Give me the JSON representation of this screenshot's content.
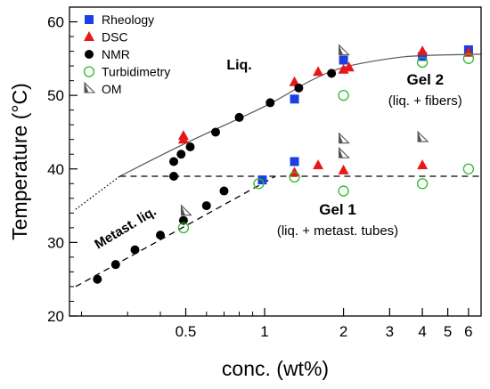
{
  "chart_data": {
    "type": "scatter",
    "xlabel": "conc. (wt%)",
    "ylabel": "Temperature (°C)",
    "xscale": "log",
    "xlim": [
      0.18,
      6.7
    ],
    "ylim": [
      20,
      62
    ],
    "xticks": [
      {
        "value": 0.5,
        "label": "0.5"
      },
      {
        "value": 1,
        "label": "1"
      },
      {
        "value": 2,
        "label": "2"
      },
      {
        "value": 3,
        "label": "3"
      },
      {
        "value": 4,
        "label": "4"
      },
      {
        "value": 5,
        "label": "5"
      },
      {
        "value": 6,
        "label": "6"
      }
    ],
    "yticks": [
      20,
      30,
      40,
      50,
      60
    ],
    "legend_position": "top-left",
    "series": [
      {
        "name": "Rheology",
        "marker": "square",
        "color": "#1b3fe0",
        "points": [
          [
            0.98,
            38.5
          ],
          [
            1.3,
            41.0
          ],
          [
            1.3,
            49.5
          ],
          [
            2.0,
            54.8
          ],
          [
            4.0,
            55.3
          ],
          [
            6.0,
            56.2
          ]
        ]
      },
      {
        "name": "DSC",
        "marker": "triangle",
        "color": "#e81818",
        "points": [
          [
            0.49,
            44.5
          ],
          [
            0.49,
            44.0
          ],
          [
            1.3,
            39.5
          ],
          [
            1.3,
            51.8
          ],
          [
            1.6,
            40.5
          ],
          [
            1.6,
            53.2
          ],
          [
            2.0,
            39.8
          ],
          [
            2.0,
            53.5
          ],
          [
            2.1,
            53.8
          ],
          [
            4.0,
            40.5
          ],
          [
            4.0,
            56.0
          ],
          [
            6.0,
            55.8
          ]
        ]
      },
      {
        "name": "NMR",
        "marker": "circle-filled",
        "color": "#000000",
        "points": [
          [
            0.23,
            25.0
          ],
          [
            0.27,
            27.0
          ],
          [
            0.32,
            29.0
          ],
          [
            0.4,
            31.0
          ],
          [
            0.49,
            33.0
          ],
          [
            0.6,
            35.0
          ],
          [
            0.7,
            37.0
          ],
          [
            0.45,
            39.0
          ],
          [
            0.45,
            41.0
          ],
          [
            0.48,
            42.0
          ],
          [
            0.52,
            43.0
          ],
          [
            0.65,
            45.0
          ],
          [
            0.8,
            47.0
          ],
          [
            1.05,
            49.0
          ],
          [
            1.35,
            51.0
          ],
          [
            1.8,
            53.0
          ]
        ]
      },
      {
        "name": "Turbidimetry",
        "marker": "circle-open",
        "color": "#2db82d",
        "points": [
          [
            0.49,
            32.0
          ],
          [
            0.95,
            38.0
          ],
          [
            1.3,
            38.9
          ],
          [
            2.0,
            37.0
          ],
          [
            2.0,
            50.0
          ],
          [
            4.0,
            38.0
          ],
          [
            4.0,
            54.5
          ],
          [
            6.0,
            40.0
          ],
          [
            6.0,
            55.0
          ]
        ]
      },
      {
        "name": "OM",
        "marker": "half-triangle",
        "color": "#555555",
        "points": [
          [
            0.5,
            34.2
          ],
          [
            2.0,
            56.0
          ],
          [
            2.0,
            44.0
          ],
          [
            2.0,
            42.0
          ],
          [
            4.0,
            44.2
          ]
        ]
      }
    ],
    "lines": [
      {
        "style": "solid",
        "points": [
          [
            0.28,
            39
          ],
          [
            0.5,
            43.5
          ],
          [
            1,
            48.5
          ],
          [
            1.5,
            52
          ],
          [
            2,
            53.8
          ],
          [
            3,
            55
          ],
          [
            4,
            55.4
          ],
          [
            6.7,
            55.6
          ]
        ]
      },
      {
        "style": "dotted",
        "points": [
          [
            0.19,
            34.5
          ],
          [
            0.28,
            39
          ]
        ]
      },
      {
        "style": "dashed",
        "points": [
          [
            0.28,
            39
          ],
          [
            6.7,
            39
          ]
        ]
      },
      {
        "style": "dashed",
        "points": [
          [
            0.19,
            24
          ],
          [
            1.1,
            39
          ]
        ]
      }
    ],
    "annotations": [
      {
        "id": "liq",
        "text": "Liq.",
        "x": 0.8,
        "y": 53.5
      },
      {
        "id": "gel2",
        "text": "Gel 2",
        "x": 4.1,
        "y": 51.5
      },
      {
        "id": "gel2sub",
        "text": "(liq. + fibers)",
        "x": 4.1,
        "y": 48.7
      },
      {
        "id": "metast",
        "text": "Metast. liq.",
        "x": 0.3,
        "y": 31.5
      },
      {
        "id": "gel1",
        "text": "Gel 1",
        "x": 1.9,
        "y": 33.8
      },
      {
        "id": "gel1sub",
        "text": "(liq. + metast. tubes)",
        "x": 1.9,
        "y": 31.0
      }
    ]
  }
}
